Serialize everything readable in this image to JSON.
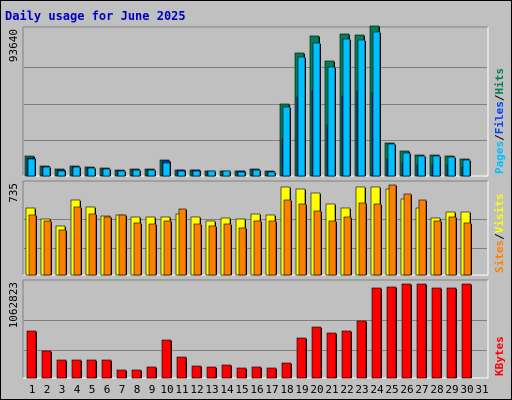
{
  "title": "Daily usage for June 2025",
  "colors": {
    "background": "#c0c0c0",
    "panel": "#c0c0c0",
    "title": "#0000c0",
    "hits": "#00805c",
    "files": "#0040ff",
    "pages": "#00c0ff",
    "visits": "#ffff00",
    "sites": "#ff8000",
    "kbytes": "#ff0000",
    "weekend_day": "#00805c"
  },
  "chart_data": [
    {
      "type": "bar",
      "title": "Daily usage for June 2025",
      "panel": "hits-files-pages",
      "y_max_label": "93640",
      "ylim": [
        0,
        93640
      ],
      "right_label": {
        "parts": [
          "Pages",
          "Files",
          "Hits"
        ]
      },
      "categories": [
        "1",
        "2",
        "3",
        "4",
        "5",
        "6",
        "7",
        "8",
        "9",
        "10",
        "11",
        "12",
        "13",
        "14",
        "15",
        "16",
        "17",
        "18",
        "19",
        "20",
        "21",
        "22",
        "23",
        "24",
        "25",
        "26",
        "27",
        "28",
        "29",
        "30",
        "31"
      ],
      "series": [
        {
          "name": "Hits",
          "values": [
            12500,
            6500,
            4200,
            6500,
            5600,
            5000,
            3700,
            4300,
            4500,
            10500,
            4100,
            4000,
            3500,
            3500,
            3300,
            4300,
            3200,
            45700,
            78200,
            89000,
            73300,
            90600,
            90100,
            95800,
            21200,
            15700,
            13300,
            13300,
            12600,
            10800,
            0
          ]
        },
        {
          "name": "Files",
          "values": [
            11500,
            5800,
            3700,
            5800,
            5000,
            4500,
            3300,
            3900,
            4100,
            9300,
            3700,
            3600,
            3100,
            3100,
            2900,
            3800,
            2800,
            23500,
            50300,
            54100,
            32800,
            51100,
            54300,
            52700,
            10900,
            8500,
            7000,
            7100,
            6700,
            5800,
            0
          ]
        },
        {
          "name": "Pages",
          "values": [
            10900,
            5500,
            3500,
            5500,
            4800,
            4200,
            3100,
            3700,
            3900,
            8100,
            3500,
            3400,
            2900,
            2900,
            2700,
            3600,
            2600,
            43900,
            75500,
            84500,
            69700,
            87100,
            86800,
            91900,
            20200,
            14500,
            12800,
            12700,
            12000,
            10200,
            0
          ]
        }
      ]
    },
    {
      "type": "bar",
      "panel": "visits-sites",
      "y_max_label": "735",
      "ylim": [
        0,
        735
      ],
      "right_label": {
        "parts": [
          "Sites",
          "Visits"
        ]
      },
      "categories": [
        "1",
        "2",
        "3",
        "4",
        "5",
        "6",
        "7",
        "8",
        "9",
        "10",
        "11",
        "12",
        "13",
        "14",
        "15",
        "16",
        "17",
        "18",
        "19",
        "20",
        "21",
        "22",
        "23",
        "24",
        "25",
        "26",
        "27",
        "28",
        "29",
        "30",
        "31"
      ],
      "series": [
        {
          "name": "Visits",
          "values": [
            546,
            461,
            400,
            610,
            555,
            484,
            490,
            473,
            473,
            473,
            497,
            470,
            443,
            465,
            461,
            498,
            491,
            715,
            700,
            670,
            580,
            545,
            715,
            715,
            700,
            620,
            546,
            466,
            515,
            514,
            0
          ]
        },
        {
          "name": "Sites",
          "values": [
            492,
            438,
            368,
            556,
            502,
            470,
            493,
            423,
            415,
            440,
            542,
            420,
            403,
            415,
            383,
            441,
            445,
            615,
            581,
            519,
            438,
            470,
            590,
            582,
            739,
            664,
            614,
            445,
            473,
            428,
            0
          ]
        }
      ]
    },
    {
      "type": "bar",
      "panel": "kbytes",
      "y_max_label": "1062823",
      "ylim": [
        0,
        1062823
      ],
      "right_label": {
        "parts": [
          "KBytes"
        ]
      },
      "categories": [
        "1",
        "2",
        "3",
        "4",
        "5",
        "6",
        "7",
        "8",
        "9",
        "10",
        "11",
        "12",
        "13",
        "14",
        "15",
        "16",
        "17",
        "18",
        "19",
        "20",
        "21",
        "22",
        "23",
        "24",
        "25",
        "26",
        "27",
        "28",
        "29",
        "30",
        "31"
      ],
      "series": [
        {
          "name": "KBytes",
          "values": [
            535000,
            305000,
            200000,
            206000,
            206000,
            206000,
            96000,
            96000,
            120000,
            428000,
            232000,
            132000,
            120000,
            144000,
            108000,
            120000,
            114000,
            168000,
            450000,
            580000,
            510000,
            526000,
            645000,
            1012000,
            1034000,
            1072000,
            1061000,
            1020000,
            1012000,
            1072000,
            0
          ]
        }
      ]
    }
  ],
  "x_axis": {
    "labels": [
      "1",
      "2",
      "3",
      "4",
      "5",
      "6",
      "7",
      "8",
      "9",
      "10",
      "11",
      "12",
      "13",
      "14",
      "15",
      "16",
      "17",
      "18",
      "19",
      "20",
      "21",
      "22",
      "23",
      "24",
      "25",
      "26",
      "27",
      "28",
      "29",
      "30",
      "31"
    ],
    "weekend_days": [
      "1",
      "7",
      "8",
      "14",
      "15",
      "21",
      "22",
      "28",
      "29"
    ]
  }
}
